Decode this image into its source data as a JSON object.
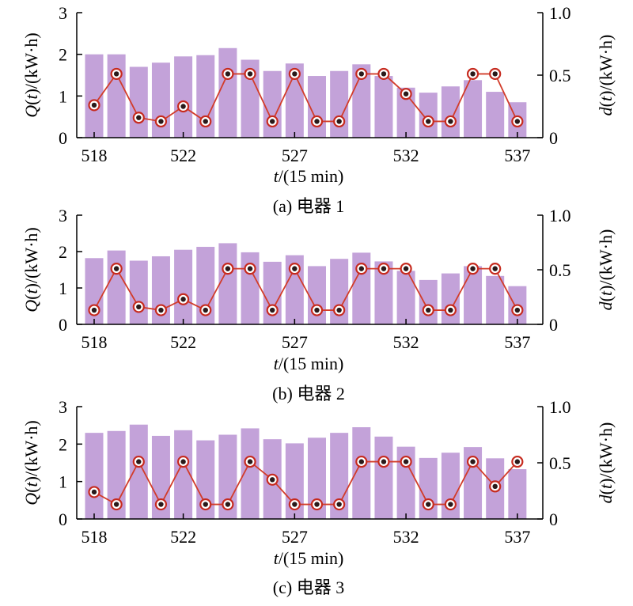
{
  "bar_color": "#c3a2d9",
  "line_color": "#d23c2a",
  "marker_outer_color": "#c62a1e",
  "marker_inner_color": "#2a1a1a",
  "chart_data": [
    {
      "type": "bar",
      "caption": "(a) 电器 1",
      "x": [
        518,
        519,
        520,
        521,
        522,
        523,
        524,
        525,
        526,
        527,
        528,
        529,
        530,
        531,
        532,
        533,
        534,
        535,
        536,
        537
      ],
      "x_ticks": [
        "518",
        "522",
        "527",
        "532",
        "537"
      ],
      "xlabel": "t/(15 min)",
      "ylabel_left": "Q(t)/(kW·h)",
      "ylabel_right": "d(t)/(kW·h)",
      "ylim_left": [
        0,
        3
      ],
      "yticks_left": [
        "0",
        "1",
        "2",
        "3"
      ],
      "ylim_right": [
        0,
        1.0
      ],
      "yticks_right": [
        "0",
        "0.5",
        "1.0"
      ],
      "series": [
        {
          "axis": "left",
          "kind": "bar",
          "values": [
            2.0,
            2.0,
            1.7,
            1.8,
            1.95,
            1.98,
            2.15,
            1.87,
            1.6,
            1.78,
            1.48,
            1.6,
            1.76,
            1.48,
            1.2,
            1.08,
            1.23,
            1.38,
            1.1,
            0.85
          ]
        },
        {
          "axis": "right",
          "kind": "line",
          "values": [
            0.26,
            0.51,
            0.16,
            0.13,
            0.25,
            0.13,
            0.51,
            0.51,
            0.13,
            0.51,
            0.13,
            0.13,
            0.51,
            0.51,
            0.35,
            0.13,
            0.13,
            0.51,
            0.51,
            0.13
          ]
        }
      ]
    },
    {
      "type": "bar",
      "caption": "(b) 电器 2",
      "x": [
        518,
        519,
        520,
        521,
        522,
        523,
        524,
        525,
        526,
        527,
        528,
        529,
        530,
        531,
        532,
        533,
        534,
        535,
        536,
        537
      ],
      "x_ticks": [
        "518",
        "522",
        "527",
        "532",
        "537"
      ],
      "xlabel": "t/(15 min)",
      "ylabel_left": "Q(t)/(kW·h)",
      "ylabel_right": "d(t)/(kW·h)",
      "ylim_left": [
        0,
        3
      ],
      "yticks_left": [
        "0",
        "1",
        "2",
        "3"
      ],
      "ylim_right": [
        0,
        1.0
      ],
      "yticks_right": [
        "0",
        "0.5",
        "1.0"
      ],
      "series": [
        {
          "axis": "left",
          "kind": "bar",
          "values": [
            1.82,
            2.03,
            1.75,
            1.87,
            2.05,
            2.13,
            2.23,
            1.98,
            1.72,
            1.9,
            1.6,
            1.8,
            1.97,
            1.73,
            1.47,
            1.22,
            1.4,
            1.6,
            1.33,
            1.05
          ]
        },
        {
          "axis": "right",
          "kind": "line",
          "values": [
            0.13,
            0.51,
            0.16,
            0.13,
            0.23,
            0.13,
            0.51,
            0.51,
            0.13,
            0.51,
            0.13,
            0.13,
            0.51,
            0.51,
            0.51,
            0.13,
            0.13,
            0.51,
            0.51,
            0.13
          ]
        }
      ]
    },
    {
      "type": "bar",
      "caption": "(c) 电器 3",
      "x": [
        518,
        519,
        520,
        521,
        522,
        523,
        524,
        525,
        526,
        527,
        528,
        529,
        530,
        531,
        532,
        533,
        534,
        535,
        536,
        537
      ],
      "x_ticks": [
        "518",
        "522",
        "527",
        "532",
        "537"
      ],
      "xlabel": "t/(15 min)",
      "ylabel_left": "Q(t)/(kW·h)",
      "ylabel_right": "d(t)/(kW·h)",
      "ylim_left": [
        0,
        3
      ],
      "yticks_left": [
        "0",
        "1",
        "2",
        "3"
      ],
      "ylim_right": [
        0,
        1.0
      ],
      "yticks_right": [
        "0",
        "0.5",
        "1.0"
      ],
      "series": [
        {
          "axis": "left",
          "kind": "bar",
          "values": [
            2.3,
            2.35,
            2.52,
            2.22,
            2.37,
            2.1,
            2.25,
            2.42,
            2.13,
            2.02,
            2.17,
            2.3,
            2.45,
            2.2,
            1.93,
            1.63,
            1.77,
            1.92,
            1.62,
            1.33
          ]
        },
        {
          "axis": "right",
          "kind": "line",
          "values": [
            0.24,
            0.13,
            0.51,
            0.13,
            0.51,
            0.13,
            0.13,
            0.51,
            0.35,
            0.13,
            0.13,
            0.13,
            0.51,
            0.51,
            0.51,
            0.13,
            0.13,
            0.51,
            0.29,
            0.51
          ]
        }
      ]
    }
  ]
}
